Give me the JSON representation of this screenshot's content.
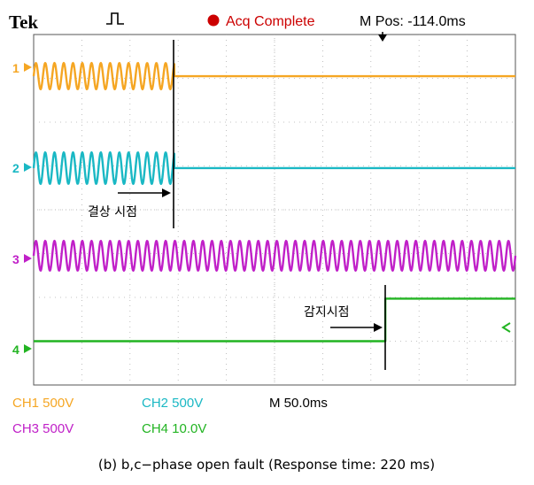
{
  "header": {
    "brand": "Tek",
    "status": "Acq Complete",
    "mpos": "M Pos: -114.0ms"
  },
  "colors": {
    "ch1": "#f5a623",
    "ch2": "#1ab8c4",
    "ch3": "#c020c8",
    "ch4": "#22b422",
    "status": "#cc0000",
    "grid": "#b0b0b0",
    "screen_bg": "#ffffff"
  },
  "channels": [
    {
      "id": "1",
      "label": "1"
    },
    {
      "id": "2",
      "label": "2"
    },
    {
      "id": "3",
      "label": "3"
    },
    {
      "id": "4",
      "label": "4"
    }
  ],
  "annotations": {
    "fault_point": "결상 시점",
    "detect_point": "감지시점"
  },
  "settings": {
    "ch1": "CH1  500V",
    "ch2": "CH2  500V",
    "ch3": "CH3  500V",
    "ch4": "CH4  10.0V",
    "timebase": "M 50.0ms"
  },
  "caption": "(b) b,c−phase open fault (Response time: 220 ms)",
  "chart_data": {
    "type": "line",
    "title": "",
    "xlabel": "",
    "ylabel": "",
    "grid": true,
    "x_divisions": 10,
    "y_divisions": 8,
    "time_per_div_ms": 50,
    "fault_time_div": 2.92,
    "detect_time_div": 7.3,
    "series": [
      {
        "name": "CH1",
        "shape": "sine_then_flat",
        "cycles_per_div": 5.2,
        "amplitude_div": 0.3,
        "level_div": 7.05,
        "switch_div": 2.92
      },
      {
        "name": "CH2",
        "shape": "sine_then_flat",
        "cycles_per_div": 5.2,
        "amplitude_div": 0.36,
        "level_div": 4.95,
        "switch_div": 2.92
      },
      {
        "name": "CH3",
        "shape": "sine",
        "cycles_per_div": 5.2,
        "amplitude_div": 0.34,
        "level_div": 2.95,
        "switch_div": null
      },
      {
        "name": "CH4",
        "shape": "step",
        "low_div": 1.0,
        "high_div": 1.97,
        "switch_div": 7.3
      }
    ]
  }
}
